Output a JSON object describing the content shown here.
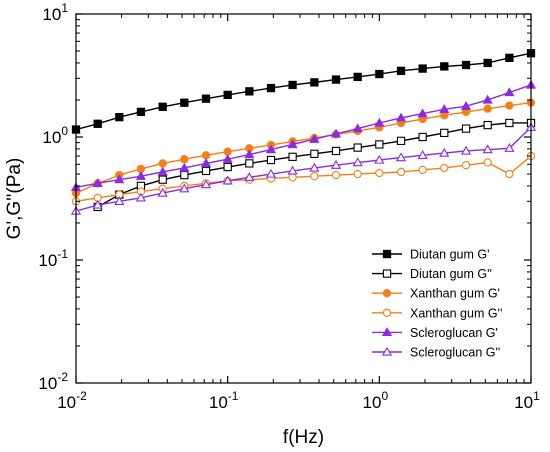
{
  "chart_data": {
    "type": "line",
    "title": "",
    "xlabel": "f(Hz)",
    "ylabel": "G',G''(Pa)",
    "x_scale": "log",
    "y_scale": "log",
    "xlim": [
      0.01,
      10
    ],
    "ylim": [
      0.01,
      10
    ],
    "x_ticks": [
      {
        "value": 0.01,
        "base": "10",
        "exp": "-2"
      },
      {
        "value": 0.1,
        "base": "10",
        "exp": "-1"
      },
      {
        "value": 1,
        "base": "10",
        "exp": "0"
      },
      {
        "value": 10,
        "base": "10",
        "exp": "1"
      }
    ],
    "y_ticks": [
      {
        "value": 0.01,
        "base": "10",
        "exp": "-2"
      },
      {
        "value": 0.1,
        "base": "10",
        "exp": "-1"
      },
      {
        "value": 1,
        "base": "10",
        "exp": "0"
      },
      {
        "value": 10,
        "base": "10",
        "exp": "1"
      }
    ],
    "grid": false,
    "legend_position": "bottom-right",
    "series": [
      {
        "name": "Diutan gum G'",
        "color": "#000000",
        "marker": "square",
        "filled": true,
        "x": [
          0.01,
          0.0139,
          0.0193,
          0.0268,
          0.0373,
          0.0518,
          0.072,
          0.1,
          0.139,
          0.193,
          0.268,
          0.373,
          0.518,
          0.72,
          1,
          1.39,
          1.93,
          2.68,
          3.73,
          5.18,
          7.2,
          10
        ],
        "y": [
          1.15,
          1.28,
          1.45,
          1.6,
          1.76,
          1.9,
          2.05,
          2.2,
          2.35,
          2.5,
          2.65,
          2.78,
          2.93,
          3.08,
          3.25,
          3.45,
          3.6,
          3.75,
          3.85,
          4.0,
          4.4,
          4.8
        ]
      },
      {
        "name": "Diutan gum G''",
        "color": "#000000",
        "marker": "square",
        "filled": false,
        "x": [
          0.0139,
          0.0193,
          0.0268,
          0.0373,
          0.0518,
          0.072,
          0.1,
          0.139,
          0.193,
          0.268,
          0.373,
          0.518,
          0.72,
          1,
          1.39,
          1.93,
          2.68,
          3.73,
          5.18,
          7.2,
          10
        ],
        "y": [
          0.27,
          0.34,
          0.4,
          0.45,
          0.49,
          0.53,
          0.57,
          0.61,
          0.65,
          0.69,
          0.73,
          0.77,
          0.82,
          0.87,
          0.93,
          1.0,
          1.08,
          1.17,
          1.25,
          1.3,
          1.3
        ]
      },
      {
        "name": "Xanthan gum G'",
        "color": "#F57F17",
        "marker": "circle",
        "filled": true,
        "x": [
          0.01,
          0.0139,
          0.0193,
          0.0268,
          0.0373,
          0.0518,
          0.072,
          0.1,
          0.139,
          0.193,
          0.268,
          0.373,
          0.518,
          0.72,
          1,
          1.39,
          1.93,
          2.68,
          3.73,
          5.18,
          7.2,
          10
        ],
        "y": [
          0.35,
          0.42,
          0.49,
          0.55,
          0.61,
          0.66,
          0.71,
          0.76,
          0.81,
          0.86,
          0.92,
          0.98,
          1.05,
          1.12,
          1.2,
          1.3,
          1.4,
          1.5,
          1.6,
          1.7,
          1.8,
          1.9
        ]
      },
      {
        "name": "Xanthan gum G''",
        "color": "#F57F17",
        "marker": "circle",
        "filled": false,
        "x": [
          0.01,
          0.0139,
          0.0193,
          0.0268,
          0.0373,
          0.0518,
          0.072,
          0.1,
          0.139,
          0.193,
          0.268,
          0.373,
          0.518,
          0.72,
          1,
          1.39,
          1.93,
          2.68,
          3.73,
          5.18,
          7.2,
          10
        ],
        "y": [
          0.3,
          0.32,
          0.34,
          0.36,
          0.38,
          0.4,
          0.42,
          0.44,
          0.45,
          0.46,
          0.47,
          0.48,
          0.49,
          0.5,
          0.51,
          0.52,
          0.54,
          0.56,
          0.59,
          0.62,
          0.5,
          0.7
        ]
      },
      {
        "name": "Scleroglucan G'",
        "color": "#8B2BE2",
        "marker": "triangle",
        "filled": true,
        "x": [
          0.01,
          0.0139,
          0.0193,
          0.0268,
          0.0373,
          0.0518,
          0.072,
          0.1,
          0.139,
          0.193,
          0.268,
          0.373,
          0.518,
          0.72,
          1,
          1.39,
          1.93,
          2.68,
          3.73,
          5.18,
          7.2,
          10
        ],
        "y": [
          0.39,
          0.42,
          0.45,
          0.48,
          0.52,
          0.56,
          0.61,
          0.66,
          0.72,
          0.79,
          0.87,
          0.96,
          1.06,
          1.17,
          1.3,
          1.43,
          1.55,
          1.68,
          1.78,
          2.0,
          2.3,
          2.65
        ]
      },
      {
        "name": "Scleroglucan G''",
        "color": "#8B2BE2",
        "marker": "triangle",
        "filled": false,
        "x": [
          0.01,
          0.0139,
          0.0193,
          0.0268,
          0.0373,
          0.0518,
          0.072,
          0.1,
          0.139,
          0.193,
          0.268,
          0.373,
          0.518,
          0.72,
          1,
          1.39,
          1.93,
          2.68,
          3.73,
          5.18,
          7.2,
          10
        ],
        "y": [
          0.25,
          0.28,
          0.3,
          0.32,
          0.35,
          0.38,
          0.41,
          0.44,
          0.47,
          0.5,
          0.53,
          0.56,
          0.59,
          0.62,
          0.65,
          0.68,
          0.71,
          0.74,
          0.77,
          0.79,
          0.81,
          1.2
        ]
      }
    ]
  }
}
